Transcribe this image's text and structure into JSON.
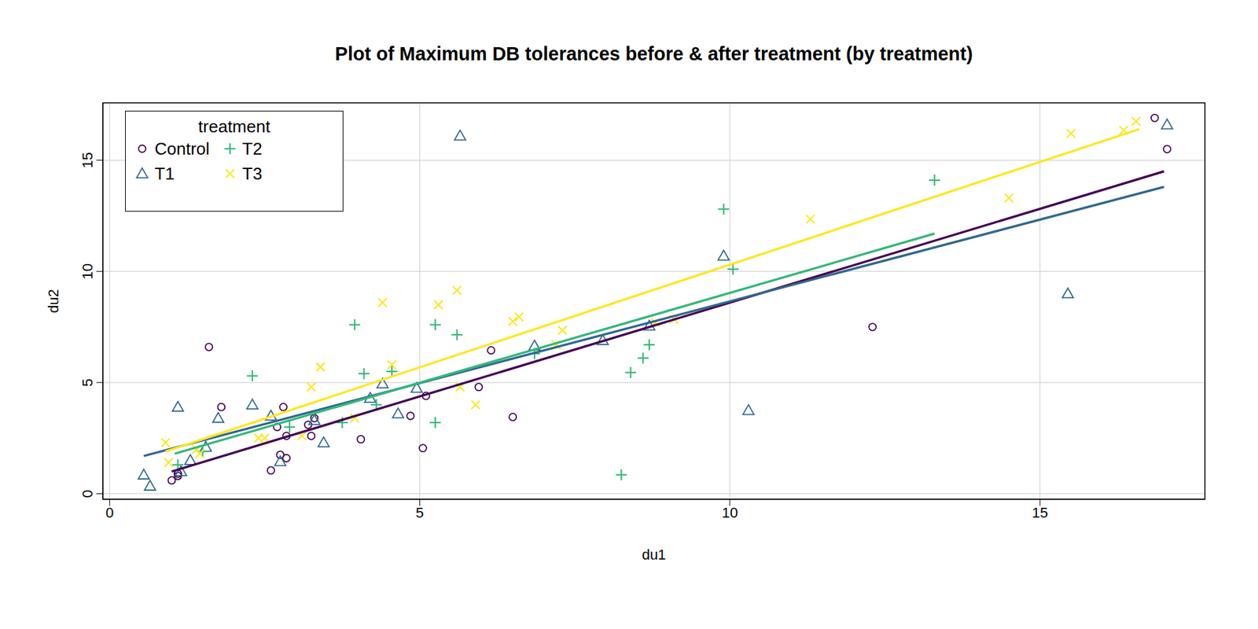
{
  "chart_data": {
    "type": "scatter",
    "title": "Plot of Maximum DB tolerances before & after treatment (by treatment)",
    "x_label": "du1",
    "y_label": "du2",
    "xlim": [
      -0.11,
      17.66
    ],
    "ylim": [
      -0.25,
      17.58
    ],
    "xticks": [
      0,
      5,
      10,
      15
    ],
    "yticks": [
      0,
      5,
      10,
      15
    ],
    "grid": true,
    "legend": "top-left",
    "legend_title": "treatment",
    "series": [
      {
        "name": "Control",
        "color": "#440154",
        "marker": "circle",
        "x": [
          1.0,
          1.1,
          1.1,
          1.6,
          1.8,
          2.6,
          2.7,
          2.75,
          2.8,
          2.85,
          2.85,
          3.2,
          3.25,
          3.3,
          4.05,
          4.85,
          5.05,
          5.1,
          5.95,
          6.15,
          6.5,
          12.3,
          16.85,
          17.05
        ],
        "y": [
          0.6,
          0.8,
          0.9,
          6.6,
          3.9,
          1.05,
          3.0,
          1.75,
          3.9,
          1.6,
          2.6,
          3.1,
          2.6,
          3.4,
          2.45,
          3.5,
          2.05,
          4.4,
          4.8,
          6.45,
          3.45,
          7.5,
          16.9,
          15.5
        ],
        "fit": {
          "x": [
            1.0,
            17.0
          ],
          "y": [
            1.0,
            14.5
          ]
        }
      },
      {
        "name": "T1",
        "color": "#31688E",
        "marker": "triangle",
        "x": [
          0.55,
          0.65,
          1.1,
          1.15,
          1.3,
          1.55,
          1.75,
          2.3,
          2.6,
          2.75,
          3.3,
          3.45,
          4.2,
          4.4,
          4.65,
          4.95,
          5.65,
          6.85,
          7.95,
          8.7,
          9.9,
          10.3,
          15.45,
          17.05
        ],
        "y": [
          0.85,
          0.35,
          3.9,
          1.0,
          1.5,
          2.1,
          3.4,
          4.0,
          3.5,
          1.45,
          3.3,
          2.3,
          4.3,
          4.95,
          3.6,
          4.75,
          16.1,
          6.65,
          6.9,
          7.55,
          10.7,
          3.75,
          9.0,
          16.6
        ],
        "fit": {
          "x": [
            0.55,
            17.0
          ],
          "y": [
            1.7,
            13.8
          ]
        }
      },
      {
        "name": "T2",
        "color": "#35B779",
        "marker": "plus",
        "x": [
          1.1,
          1.5,
          2.3,
          2.9,
          3.75,
          3.95,
          4.1,
          4.3,
          4.55,
          5.25,
          5.25,
          5.6,
          6.85,
          8.25,
          8.4,
          8.6,
          8.7,
          9.9,
          10.05,
          13.3
        ],
        "y": [
          1.3,
          1.9,
          5.3,
          3.0,
          3.2,
          7.6,
          5.4,
          4.0,
          5.5,
          7.6,
          3.2,
          7.15,
          6.3,
          0.85,
          5.45,
          6.1,
          6.7,
          12.8,
          10.1,
          14.1
        ],
        "fit": {
          "x": [
            1.05,
            13.3
          ],
          "y": [
            1.8,
            11.7
          ]
        }
      },
      {
        "name": "T3",
        "color": "#FDE725",
        "marker": "cross",
        "x": [
          0.9,
          0.95,
          1.4,
          1.45,
          2.4,
          2.5,
          3.1,
          3.25,
          3.4,
          3.95,
          4.4,
          4.55,
          5.3,
          5.6,
          5.65,
          5.9,
          6.5,
          6.6,
          7.2,
          7.3,
          8.8,
          9.1,
          11.3,
          14.5,
          15.5,
          16.35,
          16.55
        ],
        "y": [
          2.3,
          1.4,
          2.0,
          1.8,
          2.5,
          2.5,
          2.6,
          4.8,
          5.7,
          3.4,
          8.6,
          5.8,
          8.5,
          9.15,
          4.8,
          4.0,
          7.75,
          7.95,
          6.7,
          7.35,
          7.7,
          7.85,
          12.35,
          13.3,
          16.2,
          16.35,
          16.75
        ],
        "fit": {
          "x": [
            0.9,
            16.6
          ],
          "y": [
            1.9,
            16.4
          ]
        }
      }
    ]
  }
}
